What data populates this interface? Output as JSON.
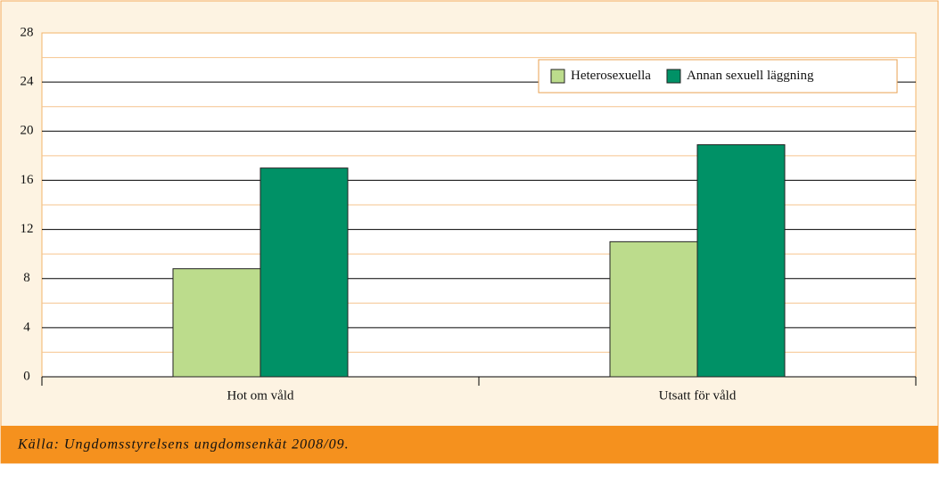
{
  "chart_data": {
    "type": "bar",
    "categories": [
      "Hot om våld",
      "Utsatt för våld"
    ],
    "series": [
      {
        "name": "Heterosexuella",
        "color": "#bcdc8c",
        "values": [
          8.8,
          11.0
        ]
      },
      {
        "name": "Annan sexuell läggning",
        "color": "#009166",
        "values": [
          17.0,
          18.9
        ]
      }
    ],
    "ylim": [
      0,
      28
    ],
    "yticks": [
      0,
      4,
      8,
      12,
      16,
      20,
      24,
      28
    ],
    "minor_yticks": [
      2,
      6,
      10,
      14,
      18,
      22,
      26
    ],
    "grid": true,
    "legend": "top-right",
    "source": "Källa: Ungdomsstyrelsens ungdomsenkät 2008/09."
  }
}
